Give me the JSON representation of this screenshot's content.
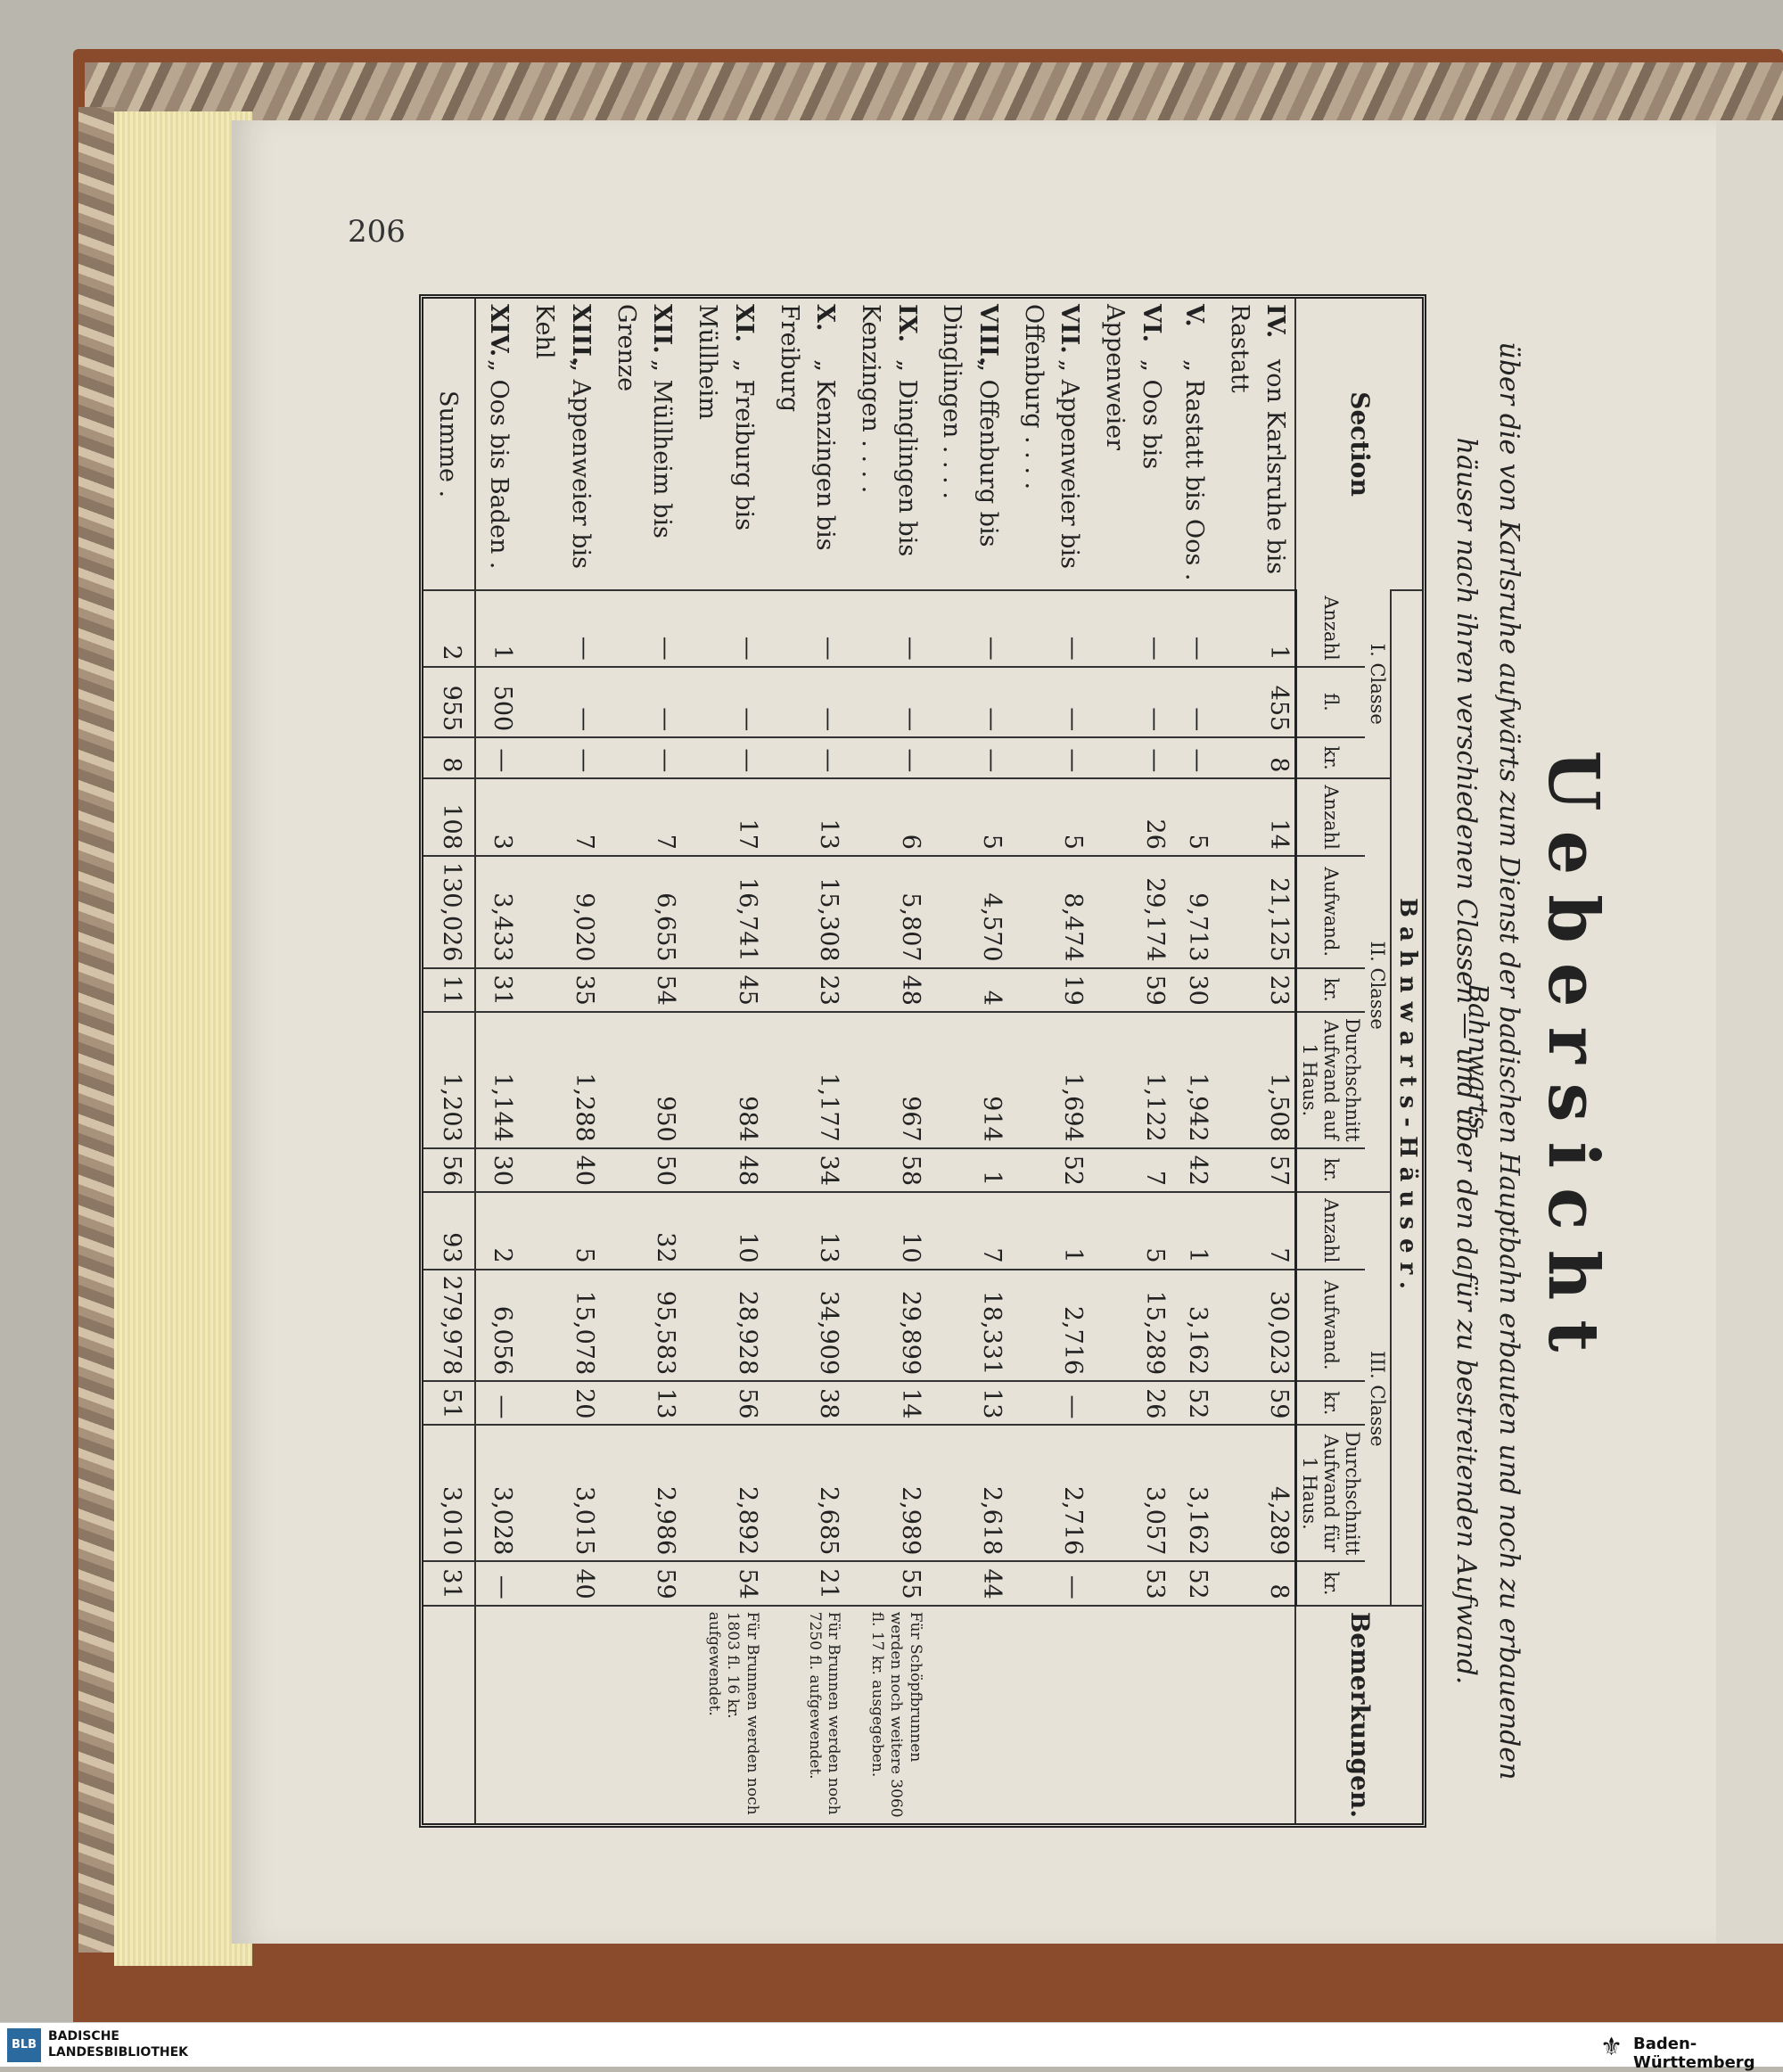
{
  "page": {
    "number": "206"
  },
  "doc": {
    "title": "Uebersicht",
    "subtitle_1": "über die von Karlsruhe aufwärts zum Dienst der badischen Hauptbahn erbauten und noch zu erbauenden Bahnwarts-",
    "subtitle_2": "häuser nach ihren verschiedenen Classen — und über den dafür zu bestreitenden Aufwand."
  },
  "table": {
    "header": {
      "section": "Section",
      "group": "Bahnwarts-Häuser.",
      "c1": "I. Classe",
      "c2": "II. Classe",
      "c3": "III. Classe",
      "anzahl": "Anzahl",
      "aufwand": "Aufwand.",
      "durch": "Durchschnitt Aufwand auf 1 Haus.",
      "durch3": "Durchschnitt Aufwand für 1 Haus.",
      "fl": "fl.",
      "kr": "kr.",
      "bemerkungen": "Bemerkungen."
    },
    "rows": [
      {
        "num": "IV.",
        "name": "von Karlsruhe bis Rastatt",
        "a1": "1",
        "f1": "455",
        "k1": "8",
        "a2": "14",
        "f2": "21,125",
        "k2": "23",
        "df2": "1,508",
        "dk2": "57",
        "a3": "7",
        "f3": "30,023",
        "k3": "59",
        "df3": "4,289",
        "dk3": "8",
        "bem": ""
      },
      {
        "num": "V.",
        "name": "„ Rastatt bis Oos .",
        "a1": "—",
        "f1": "—",
        "k1": "—",
        "a2": "5",
        "f2": "9,713",
        "k2": "30",
        "df2": "1,942",
        "dk2": "42",
        "a3": "1",
        "f3": "3,162",
        "k3": "52",
        "df3": "3,162",
        "dk3": "52",
        "bem": ""
      },
      {
        "num": "VI.",
        "name": "„ Oos bis Appenweier",
        "a1": "—",
        "f1": "—",
        "k1": "—",
        "a2": "26",
        "f2": "29,174",
        "k2": "59",
        "df2": "1,122",
        "dk2": "7",
        "a3": "5",
        "f3": "15,289",
        "k3": "26",
        "df3": "3,057",
        "dk3": "53",
        "bem": ""
      },
      {
        "num": "VII.",
        "name": "„ Appenweier bis Offenburg . . . .",
        "a1": "—",
        "f1": "—",
        "k1": "—",
        "a2": "5",
        "f2": "8,474",
        "k2": "19",
        "df2": "1,694",
        "dk2": "52",
        "a3": "1",
        "f3": "2,716",
        "k3": "—",
        "df3": "2,716",
        "dk3": "—",
        "bem": ""
      },
      {
        "num": "VIII.",
        "name": "„ Offenburg bis Dinglingen . . . .",
        "a1": "—",
        "f1": "—",
        "k1": "—",
        "a2": "5",
        "f2": "4,570",
        "k2": "4",
        "df2": "914",
        "dk2": "1",
        "a3": "7",
        "f3": "18,331",
        "k3": "13",
        "df3": "2,618",
        "dk3": "44",
        "bem": ""
      },
      {
        "num": "IX.",
        "name": "„ Dinglingen bis Kenzingen . . . .",
        "a1": "—",
        "f1": "—",
        "k1": "—",
        "a2": "6",
        "f2": "5,807",
        "k2": "48",
        "df2": "967",
        "dk2": "58",
        "a3": "10",
        "f3": "29,899",
        "k3": "14",
        "df3": "2,989",
        "dk3": "55",
        "bem": "Für Schöpfbrunnen werden noch weitere 3060 fl. 17 kr. ausgegeben."
      },
      {
        "num": "X.",
        "name": "„ Kenzingen bis Freiburg",
        "a1": "—",
        "f1": "—",
        "k1": "—",
        "a2": "13",
        "f2": "15,308",
        "k2": "23",
        "df2": "1,177",
        "dk2": "34",
        "a3": "13",
        "f3": "34,909",
        "k3": "38",
        "df3": "2,685",
        "dk3": "21",
        "bem": "Für Brunnen werden noch 7250 fl. aufgewendet."
      },
      {
        "num": "XI.",
        "name": "„ Freiburg bis Müllheim",
        "a1": "—",
        "f1": "—",
        "k1": "—",
        "a2": "17",
        "f2": "16,741",
        "k2": "45",
        "df2": "984",
        "dk2": "48",
        "a3": "10",
        "f3": "28,928",
        "k3": "56",
        "df3": "2,892",
        "dk3": "54",
        "bem": "Für Brunnen werden noch 1803 fl. 16 kr. aufgewendet."
      },
      {
        "num": "XII.",
        "name": "„ Müllheim bis Grenze",
        "a1": "—",
        "f1": "—",
        "k1": "—",
        "a2": "7",
        "f2": "6,655",
        "k2": "54",
        "df2": "950",
        "dk2": "50",
        "a3": "32",
        "f3": "95,583",
        "k3": "13",
        "df3": "2,986",
        "dk3": "59",
        "bem": ""
      },
      {
        "num": "XIII.",
        "name": "„ Appenweier bis Kehl",
        "a1": "—",
        "f1": "—",
        "k1": "—",
        "a2": "7",
        "f2": "9,020",
        "k2": "35",
        "df2": "1,288",
        "dk2": "40",
        "a3": "5",
        "f3": "15,078",
        "k3": "20",
        "df3": "3,015",
        "dk3": "40",
        "bem": ""
      },
      {
        "num": "XIV.",
        "name": "„ Oos bis Baden .",
        "a1": "1",
        "f1": "500",
        "k1": "—",
        "a2": "3",
        "f2": "3,433",
        "k2": "31",
        "df2": "1,144",
        "dk2": "30",
        "a3": "2",
        "f3": "6,056",
        "k3": "—",
        "df3": "3,028",
        "dk3": "—",
        "bem": ""
      }
    ],
    "sum": {
      "label": "Summe .",
      "a1": "2",
      "f1": "955",
      "k1": "8",
      "a2": "108",
      "f2": "130,026",
      "k2": "11",
      "df2": "1,203",
      "dk2": "56",
      "a3": "93",
      "f3": "279,978",
      "k3": "51",
      "df3": "3,010",
      "dk3": "31"
    }
  },
  "footer": {
    "left_logo": "BLB",
    "left_name_1": "BADISCHE",
    "left_name_2": "LANDESBIBLIOTHEK",
    "right_name": "Baden-Württemberg"
  }
}
